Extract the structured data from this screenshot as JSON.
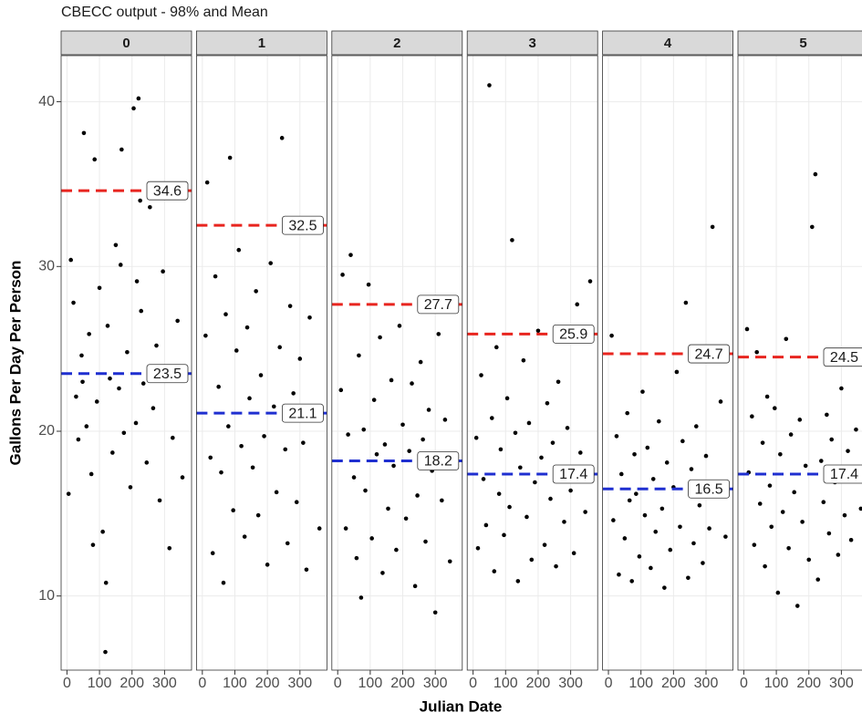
{
  "chart_data": {
    "type": "scatter",
    "title": "CBECC output - 98% and Mean",
    "xlabel": "Julian Date",
    "ylabel": "Gallons Per Day Per Person",
    "xlim": [
      -18,
      383
    ],
    "xticks": [
      0,
      100,
      200,
      300
    ],
    "ylim": [
      5.5,
      42.8
    ],
    "yticks": [
      10,
      20,
      30,
      40
    ],
    "grid": true,
    "point_color": "#000000",
    "p98_color": "#e8251f",
    "mean_color": "#1f2fd0",
    "facets": [
      {
        "label": "0",
        "p98": 34.6,
        "mean": 23.5,
        "x": [
          5,
          12,
          20,
          28,
          35,
          45,
          52,
          60,
          68,
          75,
          85,
          92,
          100,
          110,
          118,
          125,
          132,
          140,
          150,
          160,
          168,
          175,
          185,
          195,
          205,
          212,
          220,
          228,
          235,
          245,
          255,
          265,
          275,
          285,
          295,
          305,
          315,
          325,
          340,
          355,
          48,
          225,
          215,
          120,
          165,
          80
        ],
        "y": [
          16.2,
          30.4,
          27.8,
          22.1,
          19.5,
          24.6,
          38.1,
          20.3,
          25.9,
          17.4,
          36.5,
          21.8,
          28.7,
          13.9,
          6.6,
          26.4,
          23.2,
          18.7,
          31.3,
          22.6,
          37.1,
          19.9,
          24.8,
          16.6,
          39.6,
          20.5,
          40.2,
          27.3,
          22.9,
          18.1,
          33.6,
          21.4,
          25.2,
          15.8,
          29.7,
          23.8,
          12.9,
          19.6,
          26.7,
          17.2,
          23.0,
          34.0,
          29.1,
          10.8,
          30.1,
          13.1
        ]
      },
      {
        "label": "1",
        "p98": 32.5,
        "mean": 21.1,
        "x": [
          10,
          15,
          25,
          32,
          40,
          50,
          58,
          65,
          72,
          80,
          85,
          95,
          105,
          112,
          120,
          130,
          138,
          145,
          155,
          165,
          172,
          180,
          190,
          200,
          210,
          220,
          228,
          238,
          245,
          255,
          262,
          270,
          280,
          290,
          300,
          310,
          320,
          330,
          345,
          360
        ],
        "y": [
          25.8,
          35.1,
          18.4,
          12.6,
          29.4,
          22.7,
          17.5,
          10.8,
          27.1,
          20.3,
          36.6,
          15.2,
          24.9,
          31.0,
          19.1,
          13.6,
          26.3,
          22.0,
          17.8,
          28.5,
          14.9,
          23.4,
          19.7,
          11.9,
          30.2,
          21.5,
          16.3,
          25.1,
          37.8,
          18.9,
          13.2,
          27.6,
          22.3,
          15.7,
          24.4,
          19.3,
          11.6,
          26.9,
          20.8,
          14.1
        ]
      },
      {
        "label": "2",
        "p98": 27.7,
        "mean": 18.2,
        "x": [
          10,
          15,
          25,
          32,
          40,
          50,
          58,
          65,
          72,
          80,
          85,
          95,
          105,
          112,
          120,
          130,
          138,
          145,
          155,
          165,
          172,
          180,
          190,
          200,
          210,
          220,
          228,
          238,
          245,
          255,
          262,
          270,
          280,
          290,
          300,
          310,
          320,
          330,
          345,
          360
        ],
        "y": [
          22.5,
          29.5,
          14.1,
          19.8,
          30.7,
          17.2,
          12.3,
          24.6,
          9.9,
          20.1,
          16.4,
          28.9,
          13.5,
          21.9,
          18.6,
          25.7,
          11.4,
          19.2,
          15.3,
          23.1,
          17.9,
          12.8,
          26.4,
          20.4,
          14.7,
          18.8,
          22.9,
          10.6,
          16.1,
          24.2,
          19.5,
          13.3,
          21.3,
          17.6,
          9.0,
          25.9,
          15.8,
          20.7,
          12.1,
          18.3
        ]
      },
      {
        "label": "3",
        "p98": 25.9,
        "mean": 17.4,
        "x": [
          10,
          15,
          25,
          32,
          40,
          50,
          58,
          65,
          72,
          80,
          85,
          95,
          105,
          112,
          120,
          130,
          138,
          145,
          155,
          165,
          172,
          180,
          190,
          200,
          210,
          220,
          228,
          238,
          245,
          255,
          262,
          270,
          280,
          290,
          300,
          310,
          320,
          330,
          345,
          360
        ],
        "y": [
          19.6,
          12.9,
          23.4,
          17.1,
          14.3,
          41.0,
          20.8,
          11.5,
          25.1,
          16.2,
          18.9,
          13.7,
          22.0,
          15.4,
          31.6,
          19.9,
          10.9,
          17.8,
          24.3,
          14.8,
          20.5,
          12.2,
          16.9,
          26.1,
          18.4,
          13.1,
          21.7,
          15.9,
          19.3,
          11.8,
          23.0,
          17.0,
          14.5,
          20.2,
          16.4,
          12.6,
          27.7,
          18.7,
          15.1,
          29.1
        ]
      },
      {
        "label": "4",
        "p98": 24.7,
        "mean": 16.5,
        "x": [
          10,
          15,
          25,
          32,
          40,
          50,
          58,
          65,
          72,
          80,
          85,
          95,
          105,
          112,
          120,
          130,
          138,
          145,
          155,
          165,
          172,
          180,
          190,
          200,
          210,
          220,
          228,
          238,
          245,
          255,
          262,
          270,
          280,
          290,
          300,
          310,
          320,
          330,
          345,
          360
        ],
        "y": [
          25.8,
          14.6,
          19.7,
          11.3,
          17.4,
          13.5,
          21.1,
          15.8,
          10.9,
          18.6,
          16.2,
          12.4,
          22.4,
          14.9,
          19.0,
          11.7,
          17.1,
          13.9,
          20.6,
          15.3,
          10.5,
          18.1,
          12.8,
          16.6,
          23.6,
          14.2,
          19.4,
          27.8,
          11.1,
          17.7,
          13.2,
          20.3,
          15.5,
          12.0,
          18.5,
          14.1,
          32.4,
          16.9,
          21.8,
          13.6
        ]
      },
      {
        "label": "5",
        "p98": 24.5,
        "mean": 17.4,
        "x": [
          10,
          15,
          25,
          32,
          40,
          50,
          58,
          65,
          72,
          80,
          85,
          95,
          105,
          112,
          120,
          130,
          138,
          145,
          155,
          165,
          172,
          180,
          190,
          200,
          210,
          220,
          228,
          238,
          245,
          255,
          262,
          270,
          280,
          290,
          300,
          310,
          320,
          330,
          345,
          360
        ],
        "y": [
          26.2,
          17.5,
          20.9,
          13.1,
          24.8,
          15.6,
          19.3,
          11.8,
          22.1,
          16.7,
          14.2,
          21.4,
          10.2,
          18.6,
          15.1,
          25.6,
          12.9,
          19.8,
          16.3,
          9.4,
          20.7,
          14.5,
          17.9,
          12.2,
          32.4,
          35.6,
          11.0,
          18.2,
          15.7,
          21.0,
          13.8,
          19.5,
          16.9,
          12.5,
          22.6,
          14.9,
          18.8,
          13.4,
          20.1,
          15.3
        ]
      }
    ]
  }
}
